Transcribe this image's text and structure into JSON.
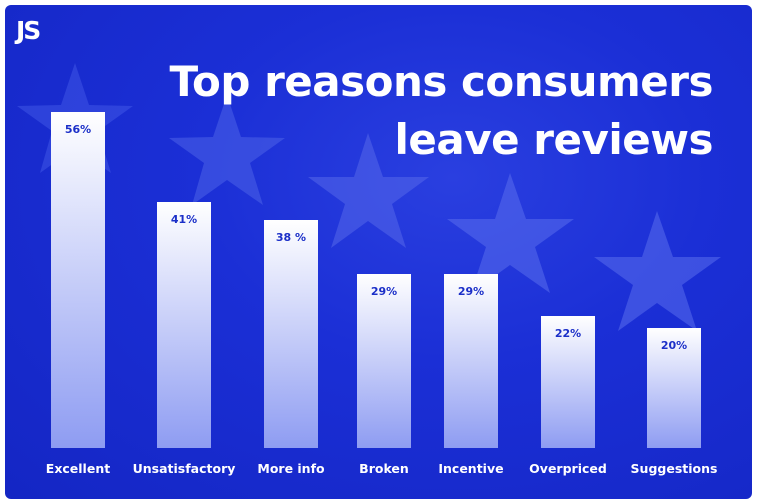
{
  "logo": {
    "text": "JS"
  },
  "colors": {
    "background": "#1b2fd6",
    "bar_top": "#ffffff",
    "bar_bottom": "#8e9cf2",
    "value_label": "#1b2fc8",
    "category_label": "#ffffff",
    "star": "#4d63e8"
  },
  "chart_data": {
    "type": "bar",
    "title": "Top reasons consumers leave reviews",
    "title_lines": [
      "Top reasons consumers",
      "leave reviews"
    ],
    "categories": [
      "Excellent",
      "Unsatisfactory",
      "More info",
      "Broken",
      "Incentive",
      "Overpriced",
      "Suggestions"
    ],
    "values": [
      56,
      41,
      38,
      29,
      29,
      22,
      20
    ],
    "value_labels": [
      "56%",
      "41%",
      "38 %",
      "29%",
      "29%",
      "22%",
      "20%"
    ],
    "xlabel": "",
    "ylabel": "",
    "ylim": [
      0,
      56
    ],
    "grid": false,
    "legend": "none"
  }
}
